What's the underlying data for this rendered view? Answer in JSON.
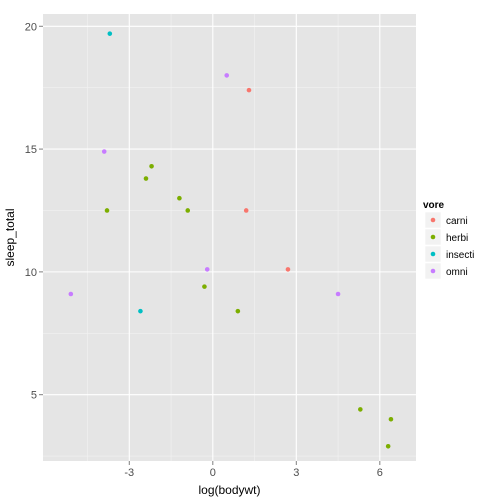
{
  "chart_data": {
    "type": "scatter",
    "xlabel": "log(bodywt)",
    "ylabel": "sleep_total",
    "xlim": [
      -6.1,
      7.3
    ],
    "ylim": [
      2.3,
      20.5
    ],
    "x_ticks": [
      -3,
      0,
      3,
      6
    ],
    "x_tick_labels": [
      "-3",
      "0",
      "3",
      "6"
    ],
    "x_minor": [
      -4.5,
      -1.5,
      1.5,
      4.5
    ],
    "y_ticks": [
      5,
      10,
      15,
      20
    ],
    "y_tick_labels": [
      "5",
      "10",
      "15",
      "20"
    ],
    "y_minor": [
      2.5,
      7.5,
      12.5,
      17.5
    ],
    "grid": true,
    "legend": {
      "title": "vore",
      "position": "right",
      "entries": [
        {
          "name": "carni",
          "color": "#F8766D"
        },
        {
          "name": "herbi",
          "color": "#7CAE00"
        },
        {
          "name": "insecti",
          "color": "#00BFC4"
        },
        {
          "name": "omni",
          "color": "#C77CFF"
        }
      ]
    },
    "series": [
      {
        "name": "carni",
        "color": "#F8766D",
        "points": [
          [
            1.3,
            17.4
          ],
          [
            1.2,
            12.5
          ],
          [
            2.7,
            10.1
          ]
        ]
      },
      {
        "name": "herbi",
        "color": "#7CAE00",
        "points": [
          [
            -3.8,
            12.5
          ],
          [
            -2.4,
            13.8
          ],
          [
            -2.2,
            14.3
          ],
          [
            -1.2,
            13.0
          ],
          [
            -0.9,
            12.5
          ],
          [
            -0.3,
            9.4
          ],
          [
            0.9,
            8.4
          ],
          [
            5.3,
            4.4
          ],
          [
            6.3,
            2.9
          ],
          [
            6.4,
            4.0
          ]
        ]
      },
      {
        "name": "insecti",
        "color": "#00BFC4",
        "points": [
          [
            -3.7,
            19.7
          ],
          [
            -2.6,
            8.4
          ]
        ]
      },
      {
        "name": "omni",
        "color": "#C77CFF",
        "points": [
          [
            -5.1,
            9.1
          ],
          [
            -3.9,
            14.9
          ],
          [
            -0.2,
            10.1
          ],
          [
            0.5,
            18.0
          ],
          [
            4.5,
            9.1
          ]
        ]
      }
    ]
  }
}
